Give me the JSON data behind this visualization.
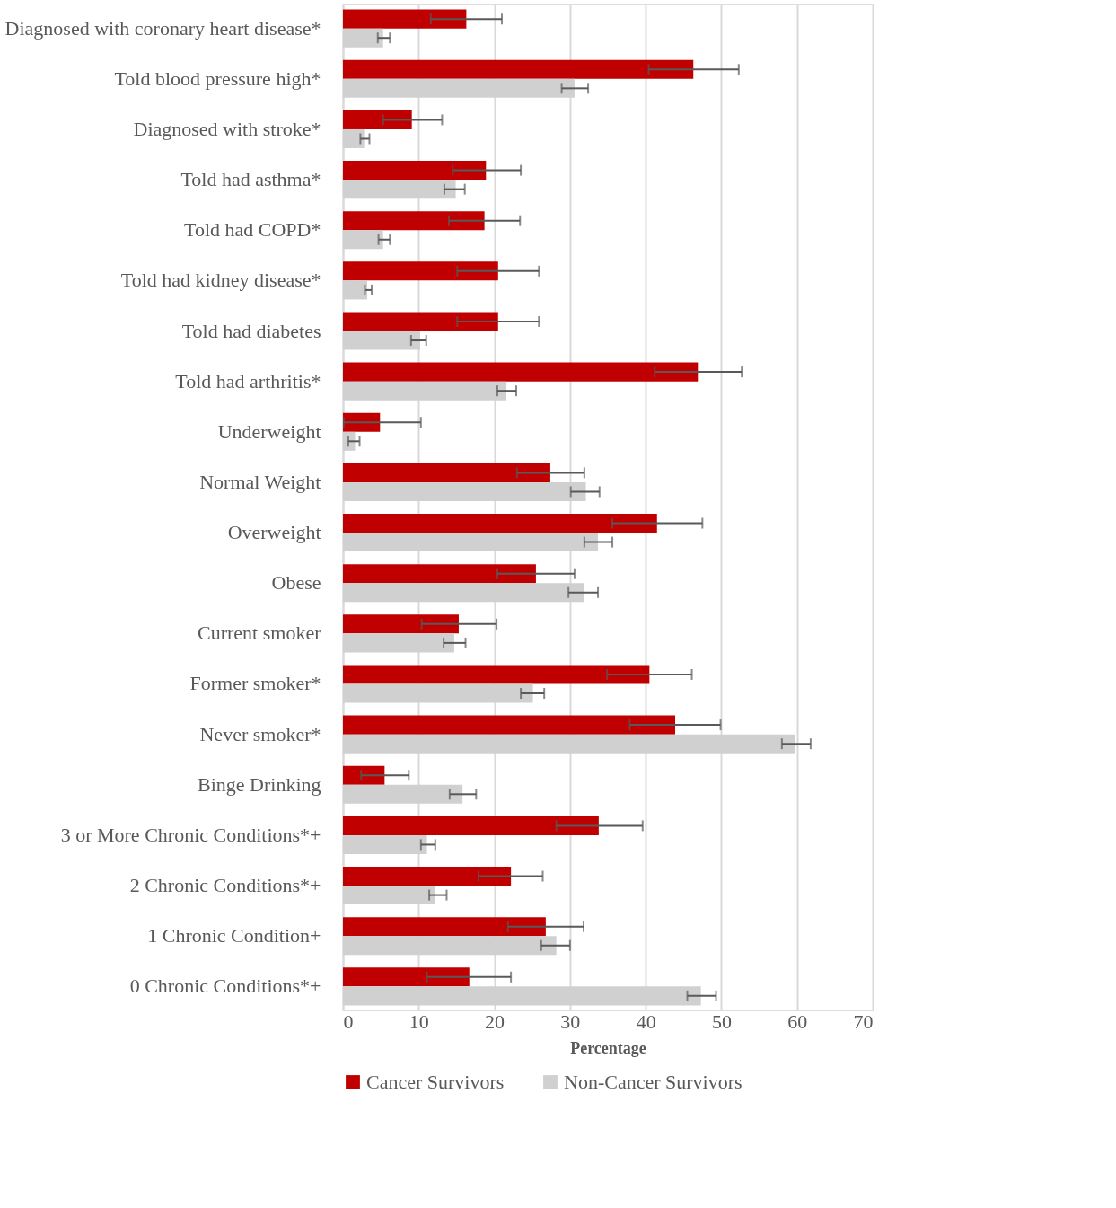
{
  "chart_data": {
    "type": "bar",
    "orientation": "horizontal",
    "xlabel": "Percentage",
    "categories": [
      "Diagnosed with coronary heart disease*",
      "Told blood pressure high*",
      "Diagnosed with stroke*",
      "Told had asthma*",
      "Told had COPD*",
      "Told had kidney disease*",
      "Told had diabetes",
      "Told had arthritis*",
      "Underweight",
      "Normal Weight",
      "Overweight",
      "Obese",
      "Current smoker",
      "Former smoker*",
      "Never smoker*",
      "Binge Drinking",
      "3 or More Chronic Conditions*+",
      "2 Chronic Conditions*+",
      "1 Chronic Condition+",
      "0 Chronic Conditions*+"
    ],
    "series": [
      {
        "name": "Cancer Survivors",
        "color": "#c00000",
        "values": [
          16.3,
          46.3,
          9.1,
          18.9,
          18.7,
          20.5,
          20.5,
          46.9,
          4.9,
          27.4,
          41.5,
          25.5,
          15.3,
          40.5,
          43.9,
          5.5,
          33.8,
          22.2,
          26.8,
          16.7
        ],
        "errors": [
          [
            11.6,
            21.0
          ],
          [
            40.4,
            52.3
          ],
          [
            5.3,
            13.1
          ],
          [
            14.5,
            23.5
          ],
          [
            14.0,
            23.4
          ],
          [
            15.1,
            25.9
          ],
          [
            15.1,
            25.9
          ],
          [
            41.2,
            52.7
          ],
          [
            0.1,
            10.3
          ],
          [
            23.0,
            31.9
          ],
          [
            35.6,
            47.5
          ],
          [
            20.4,
            30.6
          ],
          [
            10.4,
            20.3
          ],
          [
            34.9,
            46.1
          ],
          [
            37.9,
            49.9
          ],
          [
            2.4,
            8.7
          ],
          [
            28.2,
            39.6
          ],
          [
            17.9,
            26.4
          ],
          [
            21.8,
            31.8
          ],
          [
            11.1,
            22.2
          ]
        ]
      },
      {
        "name": "Non-Cancer Survivors",
        "color": "#d0d0d0",
        "values": [
          5.3,
          30.6,
          2.8,
          14.9,
          5.3,
          3.2,
          10.2,
          21.6,
          1.6,
          32.1,
          33.7,
          31.8,
          14.7,
          25.1,
          59.8,
          15.8,
          11.1,
          12.1,
          28.2,
          47.3
        ],
        "errors": [
          [
            4.6,
            6.2
          ],
          [
            28.9,
            32.4
          ],
          [
            2.3,
            3.5
          ],
          [
            13.4,
            16.1
          ],
          [
            4.7,
            6.2
          ],
          [
            2.9,
            3.8
          ],
          [
            9.0,
            11.0
          ],
          [
            20.4,
            22.9
          ],
          [
            0.7,
            2.2
          ],
          [
            30.1,
            33.9
          ],
          [
            31.9,
            35.6
          ],
          [
            29.8,
            33.7
          ],
          [
            13.3,
            16.2
          ],
          [
            23.5,
            26.6
          ],
          [
            58.0,
            61.8
          ],
          [
            14.1,
            17.6
          ],
          [
            10.3,
            12.2
          ],
          [
            11.4,
            13.7
          ],
          [
            26.2,
            30.0
          ],
          [
            45.5,
            49.3
          ]
        ]
      }
    ],
    "xlim": [
      0,
      70
    ],
    "xticks": [
      0,
      10,
      20,
      30,
      40,
      50,
      60,
      70
    ],
    "grid": "x",
    "legend": "bottom"
  }
}
